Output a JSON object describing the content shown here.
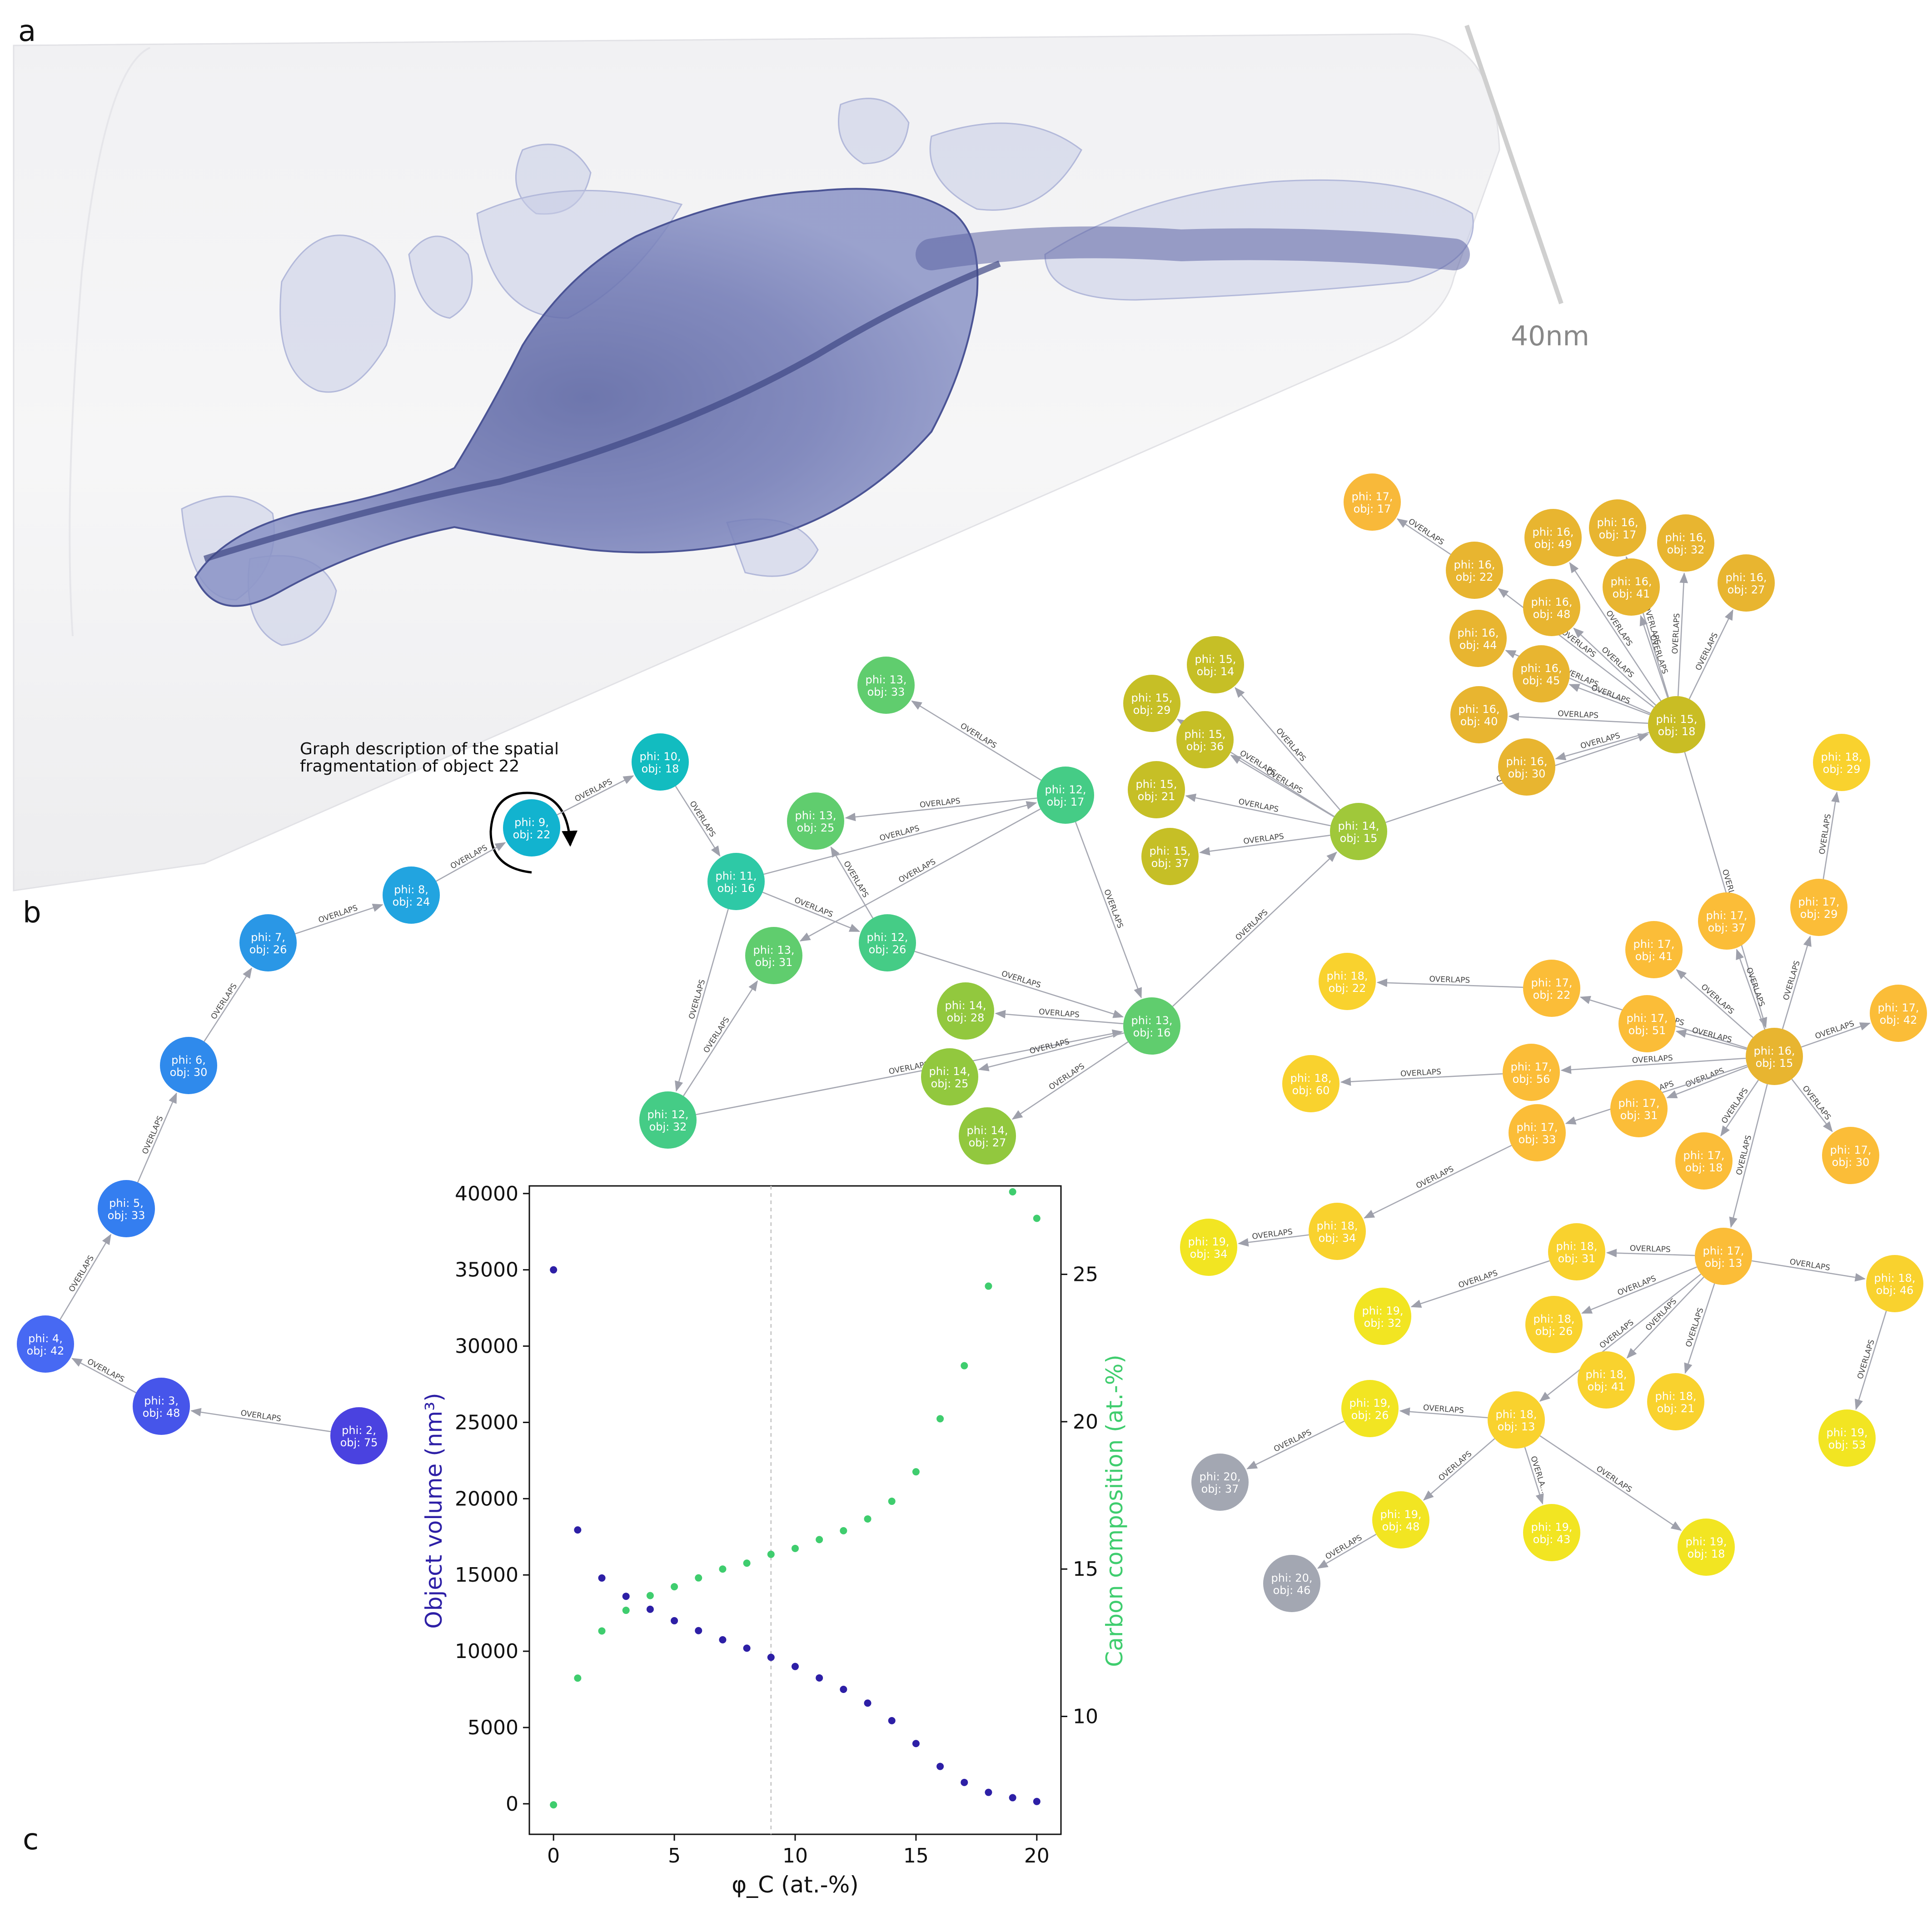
{
  "panels": {
    "a": "a",
    "b": "b",
    "c": "c"
  },
  "scale_bar": {
    "label": "40nm"
  },
  "caption": {
    "line1": "Graph description of the spatial",
    "line2": "fragmentation of object 22"
  },
  "graph": {
    "edge_label": "OVERLAPS",
    "truncated_edge_label": "OVERLA...",
    "gray_color": "#a3a7b2",
    "nodes": [
      {
        "id": "2-75",
        "phi": 2,
        "obj": 75,
        "color": "#4a42e0"
      },
      {
        "id": "3-48",
        "phi": 3,
        "obj": 48,
        "color": "#4655ea"
      },
      {
        "id": "4-42",
        "phi": 4,
        "obj": 42,
        "color": "#4769f3"
      },
      {
        "id": "5-33",
        "phi": 5,
        "obj": 33,
        "color": "#347ef0"
      },
      {
        "id": "6-30",
        "phi": 6,
        "obj": 30,
        "color": "#2f8aec"
      },
      {
        "id": "7-26",
        "phi": 7,
        "obj": 26,
        "color": "#2a97e6"
      },
      {
        "id": "8-24",
        "phi": 8,
        "obj": 24,
        "color": "#22a4e0"
      },
      {
        "id": "9-22",
        "phi": 9,
        "obj": 22,
        "color": "#12b3cf"
      },
      {
        "id": "10-18",
        "phi": 10,
        "obj": 18,
        "color": "#12bcc0"
      },
      {
        "id": "11-16",
        "phi": 11,
        "obj": 16,
        "color": "#2ec9a6"
      },
      {
        "id": "12-17",
        "phi": 12,
        "obj": 17,
        "color": "#45cc86"
      },
      {
        "id": "12-26",
        "phi": 12,
        "obj": 26,
        "color": "#45cc86"
      },
      {
        "id": "12-32",
        "phi": 12,
        "obj": 32,
        "color": "#45cc86"
      },
      {
        "id": "13-33",
        "phi": 13,
        "obj": 33,
        "color": "#60cd6e"
      },
      {
        "id": "13-25",
        "phi": 13,
        "obj": 25,
        "color": "#60cd6e"
      },
      {
        "id": "13-31",
        "phi": 13,
        "obj": 31,
        "color": "#60cd6e"
      },
      {
        "id": "13-16",
        "phi": 13,
        "obj": 16,
        "color": "#60cd6e"
      },
      {
        "id": "14-28",
        "phi": 14,
        "obj": 28,
        "color": "#92c83e"
      },
      {
        "id": "14-25",
        "phi": 14,
        "obj": 25,
        "color": "#92c83e"
      },
      {
        "id": "14-27",
        "phi": 14,
        "obj": 27,
        "color": "#92c83e"
      },
      {
        "id": "14-15",
        "phi": 14,
        "obj": 15,
        "color": "#a0c83a"
      },
      {
        "id": "15-14",
        "phi": 15,
        "obj": 14,
        "color": "#c6bf26"
      },
      {
        "id": "15-29",
        "phi": 15,
        "obj": 29,
        "color": "#c6bf26"
      },
      {
        "id": "15-36",
        "phi": 15,
        "obj": 36,
        "color": "#c6bf26"
      },
      {
        "id": "15-21",
        "phi": 15,
        "obj": 21,
        "color": "#c6bf26"
      },
      {
        "id": "15-37",
        "phi": 15,
        "obj": 37,
        "color": "#c6bf26"
      },
      {
        "id": "15-18",
        "phi": 15,
        "obj": 18,
        "color": "#c9bd24"
      },
      {
        "id": "16-49",
        "phi": 16,
        "obj": 49,
        "color": "#e8b530"
      },
      {
        "id": "16-17",
        "phi": 16,
        "obj": 17,
        "color": "#e8b530"
      },
      {
        "id": "16-32",
        "phi": 16,
        "obj": 32,
        "color": "#e8b530"
      },
      {
        "id": "16-22",
        "phi": 16,
        "obj": 22,
        "color": "#e8b530"
      },
      {
        "id": "16-41",
        "phi": 16,
        "obj": 41,
        "color": "#e8b530"
      },
      {
        "id": "16-27",
        "phi": 16,
        "obj": 27,
        "color": "#e8b530"
      },
      {
        "id": "16-48",
        "phi": 16,
        "obj": 48,
        "color": "#e8b530"
      },
      {
        "id": "16-44",
        "phi": 16,
        "obj": 44,
        "color": "#e8b530"
      },
      {
        "id": "16-45",
        "phi": 16,
        "obj": 45,
        "color": "#e8b530"
      },
      {
        "id": "16-40",
        "phi": 16,
        "obj": 40,
        "color": "#e8b530"
      },
      {
        "id": "16-30",
        "phi": 16,
        "obj": 30,
        "color": "#e8b530"
      },
      {
        "id": "17-17",
        "phi": 17,
        "obj": 17,
        "color": "#f8b93a"
      },
      {
        "id": "16-15",
        "phi": 16,
        "obj": 15,
        "color": "#e8b530"
      },
      {
        "id": "17-37",
        "phi": 17,
        "obj": 37,
        "color": "#fbbd38"
      },
      {
        "id": "17-29",
        "phi": 17,
        "obj": 29,
        "color": "#fbbd38"
      },
      {
        "id": "17-41",
        "phi": 17,
        "obj": 41,
        "color": "#fbbd38"
      },
      {
        "id": "17-22",
        "phi": 17,
        "obj": 22,
        "color": "#fbbd38"
      },
      {
        "id": "17-51",
        "phi": 17,
        "obj": 51,
        "color": "#fbbd38"
      },
      {
        "id": "17-42",
        "phi": 17,
        "obj": 42,
        "color": "#fbbd38"
      },
      {
        "id": "17-56",
        "phi": 17,
        "obj": 56,
        "color": "#fbbd38"
      },
      {
        "id": "17-31",
        "phi": 17,
        "obj": 31,
        "color": "#fbbd38"
      },
      {
        "id": "17-33",
        "phi": 17,
        "obj": 33,
        "color": "#fbbd38"
      },
      {
        "id": "17-18",
        "phi": 17,
        "obj": 18,
        "color": "#fbbd38"
      },
      {
        "id": "17-30",
        "phi": 17,
        "obj": 30,
        "color": "#fbbd38"
      },
      {
        "id": "17-13",
        "phi": 17,
        "obj": 13,
        "color": "#fbbd38"
      },
      {
        "id": "18-29",
        "phi": 18,
        "obj": 29,
        "color": "#f9d22e"
      },
      {
        "id": "18-22",
        "phi": 18,
        "obj": 22,
        "color": "#f9d22e"
      },
      {
        "id": "18-60",
        "phi": 18,
        "obj": 60,
        "color": "#f9d22e"
      },
      {
        "id": "18-34",
        "phi": 18,
        "obj": 34,
        "color": "#f9d22e"
      },
      {
        "id": "18-31",
        "phi": 18,
        "obj": 31,
        "color": "#f9d22e"
      },
      {
        "id": "18-26",
        "phi": 18,
        "obj": 26,
        "color": "#f9d22e"
      },
      {
        "id": "18-41",
        "phi": 18,
        "obj": 41,
        "color": "#f9d22e"
      },
      {
        "id": "18-21",
        "phi": 18,
        "obj": 21,
        "color": "#f9d22e"
      },
      {
        "id": "18-46",
        "phi": 18,
        "obj": 46,
        "color": "#f9d22e"
      },
      {
        "id": "18-13",
        "phi": 18,
        "obj": 13,
        "color": "#f9d22e"
      },
      {
        "id": "19-34",
        "phi": 19,
        "obj": 34,
        "color": "#f2e522"
      },
      {
        "id": "19-32",
        "phi": 19,
        "obj": 32,
        "color": "#f2e522"
      },
      {
        "id": "19-53",
        "phi": 19,
        "obj": 53,
        "color": "#f2e522"
      },
      {
        "id": "19-26",
        "phi": 19,
        "obj": 26,
        "color": "#f2e522"
      },
      {
        "id": "19-48",
        "phi": 19,
        "obj": 48,
        "color": "#f2e522"
      },
      {
        "id": "19-43",
        "phi": 19,
        "obj": 43,
        "color": "#f2e522"
      },
      {
        "id": "19-18",
        "phi": 19,
        "obj": 18,
        "color": "#f2e522"
      },
      {
        "id": "20-37",
        "phi": 20,
        "obj": 37,
        "color": "#a3a7b2"
      },
      {
        "id": "20-46",
        "phi": 20,
        "obj": 46,
        "color": "#a3a7b2"
      }
    ],
    "edges": [
      [
        "2-75",
        "3-48"
      ],
      [
        "3-48",
        "4-42"
      ],
      [
        "4-42",
        "5-33"
      ],
      [
        "5-33",
        "6-30"
      ],
      [
        "6-30",
        "7-26"
      ],
      [
        "7-26",
        "8-24"
      ],
      [
        "8-24",
        "9-22"
      ],
      [
        "9-22",
        "10-18"
      ],
      [
        "10-18",
        "11-16"
      ],
      [
        "11-16",
        "12-17"
      ],
      [
        "11-16",
        "12-26"
      ],
      [
        "11-16",
        "12-32"
      ],
      [
        "12-17",
        "13-33"
      ],
      [
        "12-17",
        "13-25"
      ],
      [
        "12-17",
        "13-31"
      ],
      [
        "12-17",
        "13-16"
      ],
      [
        "12-26",
        "13-25"
      ],
      [
        "12-26",
        "13-16"
      ],
      [
        "12-32",
        "13-31"
      ],
      [
        "12-32",
        "13-16"
      ],
      [
        "13-16",
        "14-28"
      ],
      [
        "13-16",
        "14-25"
      ],
      [
        "13-16",
        "14-27"
      ],
      [
        "13-16",
        "14-15"
      ],
      [
        "14-15",
        "15-14"
      ],
      [
        "14-15",
        "15-29"
      ],
      [
        "14-15",
        "15-36"
      ],
      [
        "14-15",
        "15-21"
      ],
      [
        "14-15",
        "15-37"
      ],
      [
        "14-15",
        "15-18"
      ],
      [
        "15-18",
        "16-49"
      ],
      [
        "15-18",
        "16-17"
      ],
      [
        "15-18",
        "16-32"
      ],
      [
        "15-18",
        "16-22"
      ],
      [
        "15-18",
        "16-41"
      ],
      [
        "15-18",
        "16-27"
      ],
      [
        "15-18",
        "16-48"
      ],
      [
        "15-18",
        "16-44"
      ],
      [
        "15-18",
        "16-45"
      ],
      [
        "15-18",
        "16-40"
      ],
      [
        "15-18",
        "16-30"
      ],
      [
        "16-22",
        "17-17"
      ],
      [
        "15-18",
        "16-15"
      ],
      [
        "16-15",
        "17-37"
      ],
      [
        "16-15",
        "17-29"
      ],
      [
        "16-15",
        "17-41"
      ],
      [
        "16-15",
        "17-22"
      ],
      [
        "16-15",
        "17-51"
      ],
      [
        "16-15",
        "17-42"
      ],
      [
        "16-15",
        "17-56"
      ],
      [
        "16-15",
        "17-31"
      ],
      [
        "16-15",
        "17-33"
      ],
      [
        "16-15",
        "17-18"
      ],
      [
        "16-15",
        "17-30"
      ],
      [
        "16-15",
        "17-13"
      ],
      [
        "17-29",
        "18-29"
      ],
      [
        "17-22",
        "18-22"
      ],
      [
        "17-56",
        "18-60"
      ],
      [
        "17-33",
        "18-34"
      ],
      [
        "18-34",
        "19-34"
      ],
      [
        "17-13",
        "18-31"
      ],
      [
        "17-13",
        "18-26"
      ],
      [
        "17-13",
        "18-41"
      ],
      [
        "17-13",
        "18-21"
      ],
      [
        "17-13",
        "18-46"
      ],
      [
        "17-13",
        "18-13"
      ],
      [
        "18-31",
        "19-32"
      ],
      [
        "18-46",
        "19-53"
      ],
      [
        "18-13",
        "19-26"
      ],
      [
        "18-13",
        "19-48"
      ],
      [
        "18-13",
        "19-43"
      ],
      [
        "18-13",
        "19-18"
      ],
      [
        "19-26",
        "20-37"
      ],
      [
        "19-48",
        "20-46"
      ]
    ]
  },
  "chart_data": {
    "type": "scatter",
    "xlabel": "φ_C (at.-%)",
    "ylabel_left": "Object volume (nm³)",
    "ylabel_right": "Carbon composition (at.-%)",
    "xlim": [
      -1,
      21
    ],
    "ylim_left": [
      -2000,
      40500
    ],
    "ylim_right": [
      6,
      28
    ],
    "vline_x": 9,
    "x_ticks": [
      0,
      5,
      10,
      15,
      20
    ],
    "y_left_ticks": [
      0,
      5000,
      10000,
      15000,
      20000,
      25000,
      30000,
      35000,
      40000
    ],
    "y_right_ticks": [
      10,
      15,
      20,
      25
    ],
    "colors": {
      "volume": "#2d1fa6",
      "carbon": "#3fcd6e"
    },
    "series": [
      {
        "name": "Object volume",
        "axis": "left",
        "x": [
          0,
          1,
          2,
          3,
          4,
          5,
          6,
          7,
          8,
          9,
          10,
          11,
          12,
          13,
          14,
          15,
          16,
          17,
          18,
          19,
          20
        ],
        "values": [
          35000,
          17950,
          14800,
          13600,
          12750,
          12000,
          11350,
          10750,
          10200,
          9600,
          9000,
          8250,
          7500,
          6600,
          5450,
          3950,
          2450,
          1400,
          750,
          400,
          150
        ]
      },
      {
        "name": "Carbon composition",
        "axis": "right",
        "x": [
          0,
          1,
          2,
          3,
          4,
          5,
          6,
          7,
          8,
          9,
          10,
          11,
          12,
          13,
          14,
          15,
          16,
          17,
          18,
          19,
          20
        ],
        "values": [
          7.0,
          11.3,
          12.9,
          13.6,
          14.1,
          14.4,
          14.7,
          15.0,
          15.2,
          15.5,
          15.7,
          16.0,
          16.3,
          16.7,
          17.3,
          18.3,
          20.1,
          21.9,
          24.6,
          27.8,
          26.9
        ]
      }
    ]
  }
}
